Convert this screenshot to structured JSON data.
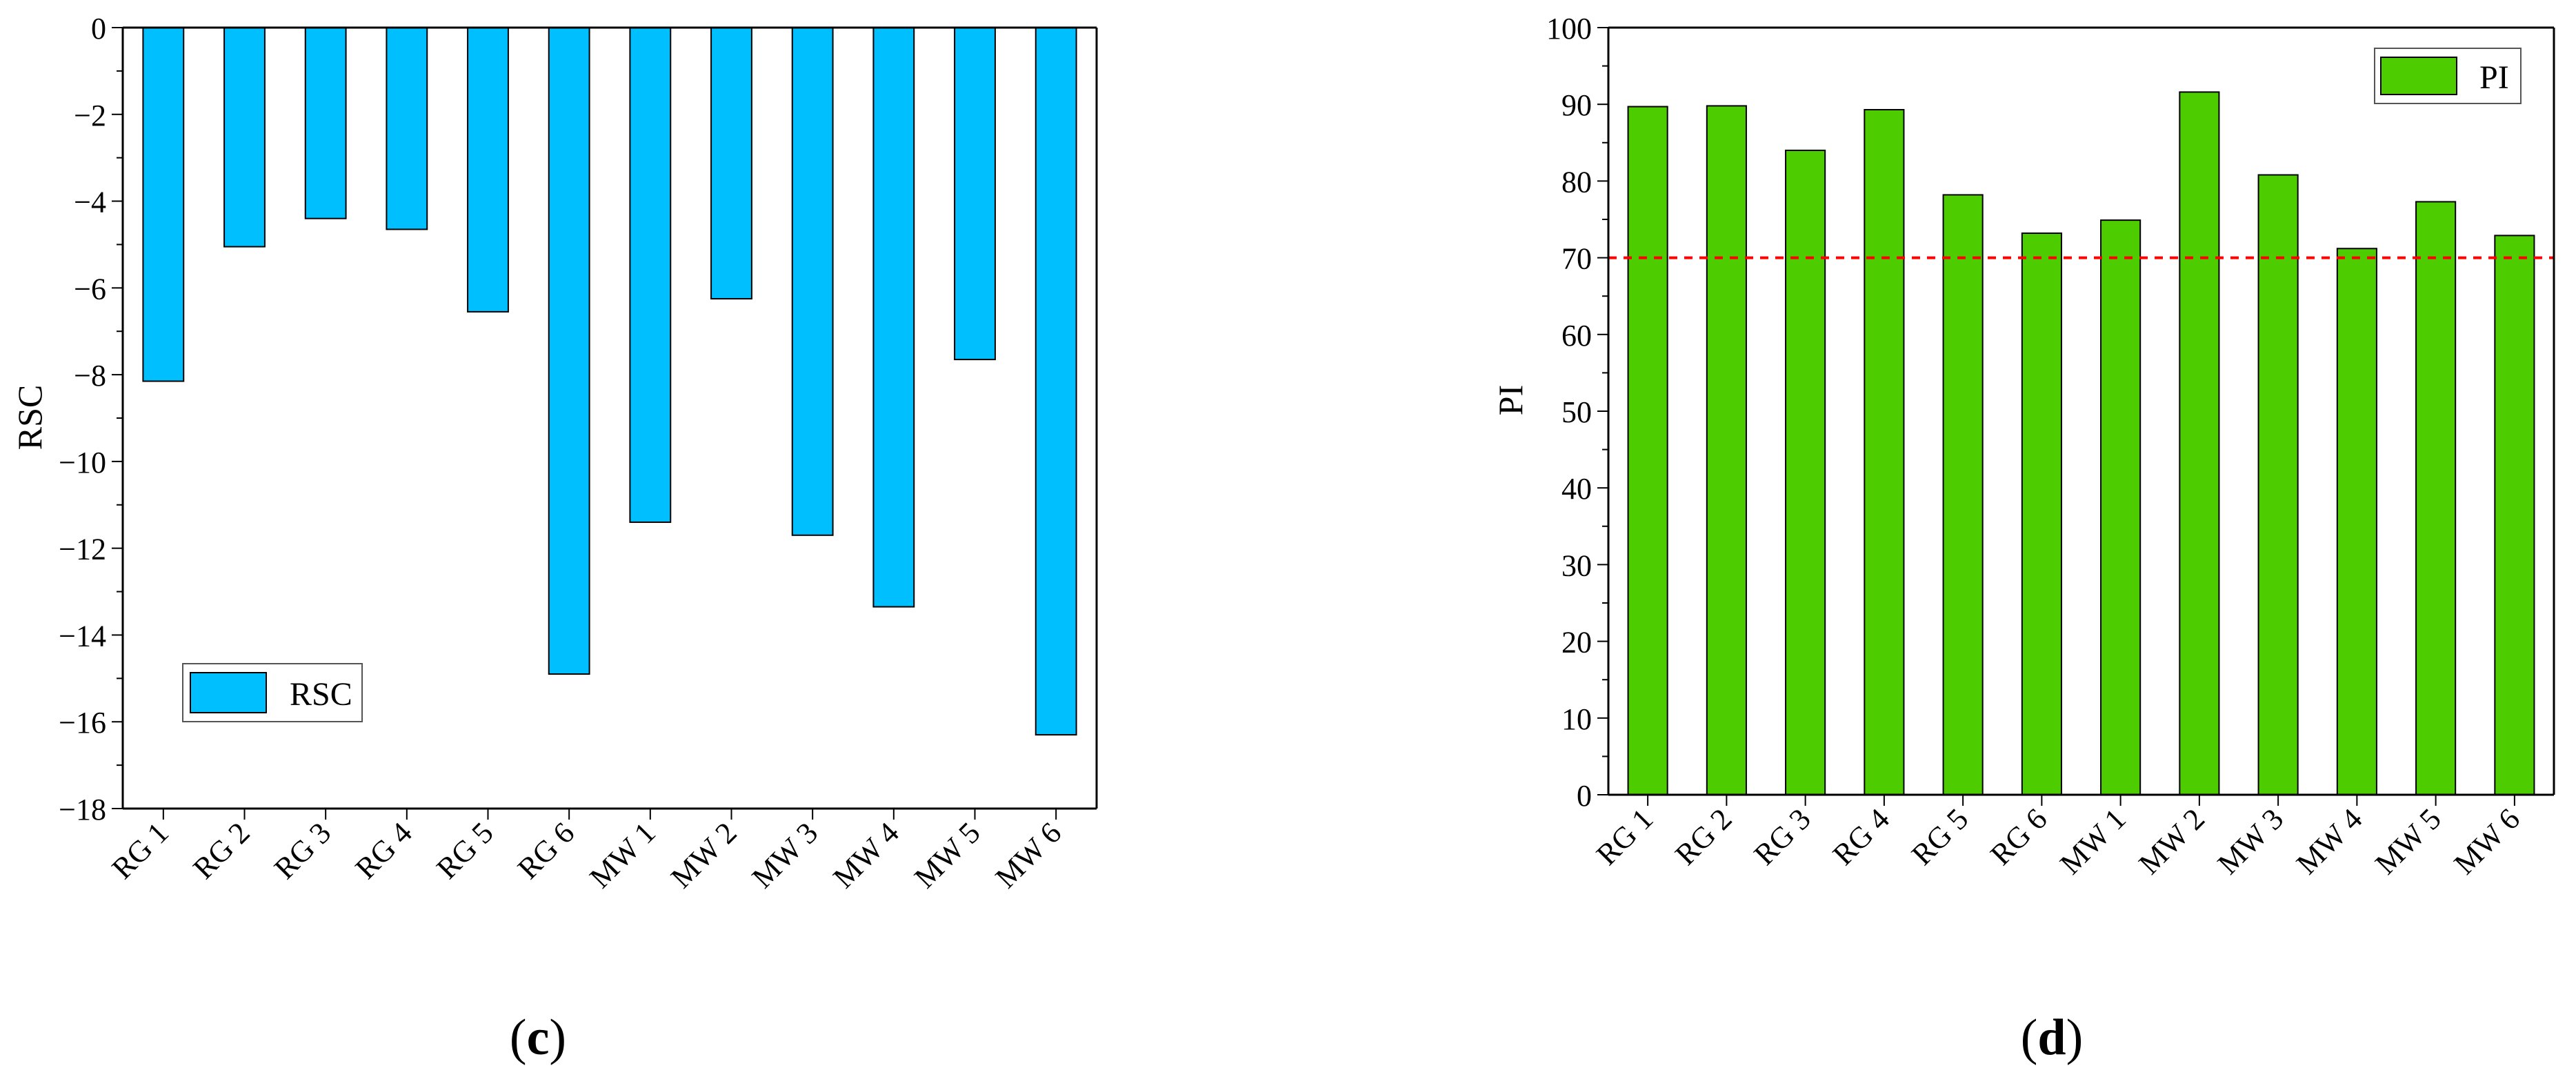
{
  "colors": {
    "rsc_bar": "#00bfff",
    "pi_bar": "#4dcc00",
    "threshold_line": "#ff0000",
    "axis": "#000000"
  },
  "chart_data": [
    {
      "panel_label": "c",
      "type": "bar",
      "categories": [
        "RG 1",
        "RG 2",
        "RG 3",
        "RG 4",
        "RG 5",
        "RG 6",
        "MW 1",
        "MW 2",
        "MW 3",
        "MW 4",
        "MW 5",
        "MW 6"
      ],
      "series": [
        {
          "name": "RSC",
          "values": [
            -8.15,
            -5.05,
            -4.4,
            -4.65,
            -6.55,
            -14.9,
            -11.4,
            -6.25,
            -11.7,
            -13.35,
            -7.65,
            -16.3
          ]
        }
      ],
      "xlabel": "",
      "ylabel": "RSC",
      "ylim": [
        -18,
        0
      ],
      "yticks": [
        0,
        -2,
        -4,
        -6,
        -8,
        -10,
        -12,
        -14,
        -16,
        -18
      ],
      "ytick_labels": [
        "0",
        "−2",
        "−4",
        "−6",
        "−8",
        "−10",
        "−12",
        "−14",
        "−16",
        "−18"
      ],
      "grid": false,
      "legend": {
        "position": "bottom-left",
        "entries": [
          "RSC"
        ]
      }
    },
    {
      "panel_label": "d",
      "type": "bar",
      "categories": [
        "RG 1",
        "RG 2",
        "RG 3",
        "RG 4",
        "RG 5",
        "RG 6",
        "MW 1",
        "MW 2",
        "MW 3",
        "MW 4",
        "MW 5",
        "MW 6"
      ],
      "series": [
        {
          "name": "PI",
          "values": [
            89.7,
            89.8,
            84.0,
            89.3,
            78.2,
            73.2,
            74.9,
            91.6,
            80.8,
            71.2,
            77.3,
            72.9
          ]
        }
      ],
      "xlabel": "",
      "ylabel": "PI",
      "ylim": [
        0,
        100
      ],
      "yticks": [
        0,
        10,
        20,
        30,
        40,
        50,
        60,
        70,
        80,
        90,
        100
      ],
      "ytick_labels": [
        "0",
        "10",
        "20",
        "30",
        "40",
        "50",
        "60",
        "70",
        "80",
        "90",
        "100"
      ],
      "reference_line": {
        "value": 70,
        "style": "dashed"
      },
      "grid": false,
      "legend": {
        "position": "top-right",
        "entries": [
          "PI"
        ]
      }
    }
  ]
}
